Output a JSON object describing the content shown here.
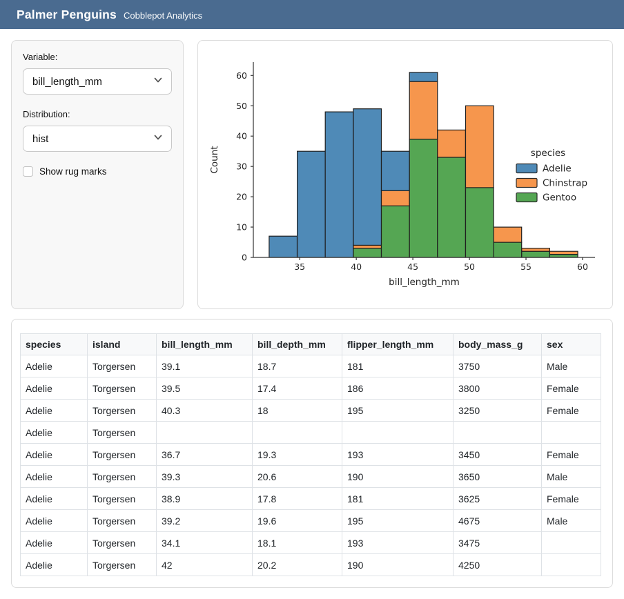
{
  "header": {
    "title": "Palmer Penguins",
    "subtitle": "Cobblepot Analytics",
    "bg_color": "#4a6b90"
  },
  "sidebar": {
    "variable": {
      "label": "Variable:",
      "value": "bill_length_mm"
    },
    "distribution": {
      "label": "Distribution:",
      "value": "hist"
    },
    "rug": {
      "label": "Show rug marks",
      "checked": false
    }
  },
  "chart_data": {
    "type": "bar",
    "subtype": "stacked-histogram",
    "title": "",
    "xlabel": "bill_length_mm",
    "ylabel": "Count",
    "legend_title": "species",
    "legend_position": "right",
    "grid": false,
    "xlim": [
      30.9,
      61.1
    ],
    "ylim": [
      0,
      64.4
    ],
    "x_ticks": [
      35,
      40,
      45,
      50,
      55,
      60
    ],
    "y_ticks": [
      0,
      10,
      20,
      30,
      40,
      50,
      60
    ],
    "bin_start": 32.3,
    "bin_width": 2.48,
    "bin_count": 11,
    "stack_bottom_to_top": [
      "Gentoo",
      "Chinstrap",
      "Adelie"
    ],
    "series": [
      {
        "name": "Adelie",
        "color": "#4f8ab7",
        "values": [
          7,
          35,
          48,
          45,
          13,
          3,
          0,
          0,
          0,
          0,
          0
        ]
      },
      {
        "name": "Chinstrap",
        "color": "#f6964d",
        "values": [
          0,
          0,
          0,
          1,
          5,
          19,
          9,
          27,
          5,
          1,
          1
        ]
      },
      {
        "name": "Gentoo",
        "color": "#55a653",
        "values": [
          0,
          0,
          0,
          3,
          17,
          39,
          33,
          23,
          5,
          2,
          1
        ]
      }
    ]
  },
  "table": {
    "columns": [
      "species",
      "island",
      "bill_length_mm",
      "bill_depth_mm",
      "flipper_length_mm",
      "body_mass_g",
      "sex"
    ],
    "rows": [
      [
        "Adelie",
        "Torgersen",
        "39.1",
        "18.7",
        "181",
        "3750",
        "Male"
      ],
      [
        "Adelie",
        "Torgersen",
        "39.5",
        "17.4",
        "186",
        "3800",
        "Female"
      ],
      [
        "Adelie",
        "Torgersen",
        "40.3",
        "18",
        "195",
        "3250",
        "Female"
      ],
      [
        "Adelie",
        "Torgersen",
        "",
        "",
        "",
        "",
        ""
      ],
      [
        "Adelie",
        "Torgersen",
        "36.7",
        "19.3",
        "193",
        "3450",
        "Female"
      ],
      [
        "Adelie",
        "Torgersen",
        "39.3",
        "20.6",
        "190",
        "3650",
        "Male"
      ],
      [
        "Adelie",
        "Torgersen",
        "38.9",
        "17.8",
        "181",
        "3625",
        "Female"
      ],
      [
        "Adelie",
        "Torgersen",
        "39.2",
        "19.6",
        "195",
        "4675",
        "Male"
      ],
      [
        "Adelie",
        "Torgersen",
        "34.1",
        "18.1",
        "193",
        "3475",
        ""
      ],
      [
        "Adelie",
        "Torgersen",
        "42",
        "20.2",
        "190",
        "4250",
        ""
      ]
    ]
  }
}
